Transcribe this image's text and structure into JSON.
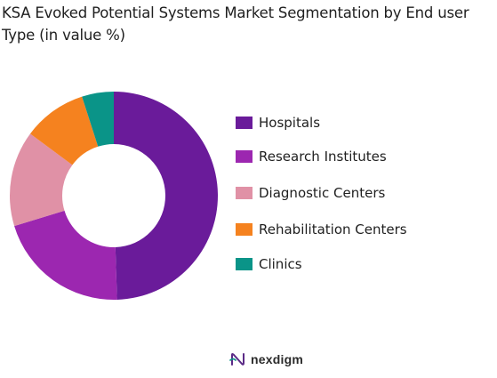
{
  "chart_data": {
    "type": "pie",
    "title": "KSA Evoked Potential Systems Market Segmentation by End user Type (in value %)",
    "series": [
      {
        "name": "",
        "categories": [
          "Hospitals",
          "Research Institutes",
          "Diagnostic Centers",
          "Rehabilitation Centers",
          "Clinics"
        ],
        "values": [
          50,
          21,
          15,
          10,
          5
        ],
        "colors": [
          "#6a1b9a",
          "#9c27b0",
          "#e091a6",
          "#f5821f",
          "#0a9488"
        ]
      }
    ],
    "donut": true,
    "legend_position": "right"
  },
  "brand": {
    "name": "nexdigm",
    "logo_icon": "nexdigm-logo-icon"
  }
}
